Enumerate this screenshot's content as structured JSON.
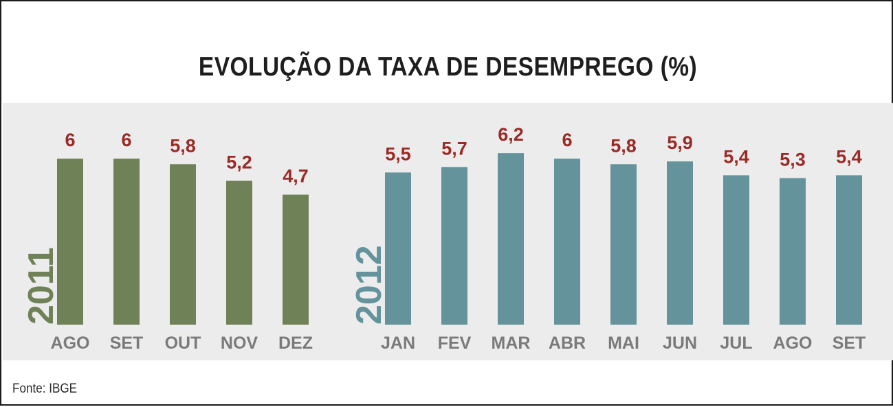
{
  "title": "EVOLUÇÃO DA TAXA DE DESEMPREGO (%)",
  "source": "Fonte: IBGE",
  "colors": {
    "bars_2011": "#6f8156",
    "bars_2012": "#64939c",
    "value_labels": "#9b2a26",
    "tick_labels": "#7a7a7a",
    "panel_bg": "#ececec"
  },
  "chart_data": [
    {
      "type": "bar",
      "year_label": "2011",
      "categories": [
        "AGO",
        "SET",
        "OUT",
        "NOV",
        "DEZ"
      ],
      "values": [
        6,
        6,
        5.8,
        5.2,
        4.7
      ],
      "value_labels": [
        "6",
        "6",
        "5,8",
        "5,2",
        "4,7"
      ],
      "ylim": [
        0,
        6.2
      ],
      "color": "#6f8156"
    },
    {
      "type": "bar",
      "year_label": "2012",
      "categories": [
        "JAN",
        "FEV",
        "MAR",
        "ABR",
        "MAI",
        "JUN",
        "JUL",
        "AGO",
        "SET"
      ],
      "values": [
        5.5,
        5.7,
        6.2,
        6,
        5.8,
        5.9,
        5.4,
        5.3,
        5.4
      ],
      "value_labels": [
        "5,5",
        "5,7",
        "6,2",
        "6",
        "5,8",
        "5,9",
        "5,4",
        "5,3",
        "5,4"
      ],
      "ylim": [
        0,
        6.2
      ],
      "color": "#64939c"
    }
  ]
}
